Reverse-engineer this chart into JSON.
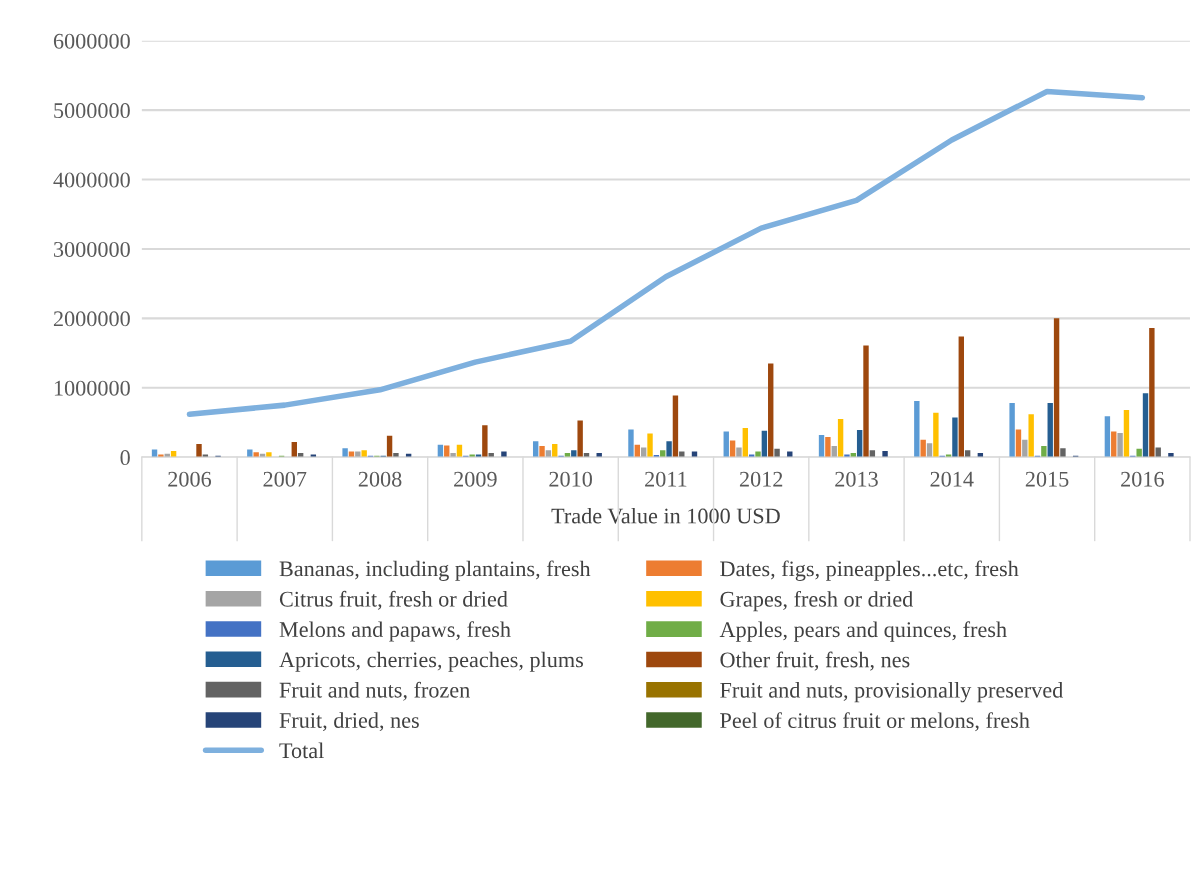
{
  "chart_data": {
    "type": "bar",
    "xlabel": "Trade Value in 1000 USD",
    "categories": [
      "2006",
      "2007",
      "2008",
      "2009",
      "2010",
      "2011",
      "2012",
      "2013",
      "2014",
      "2015",
      "2016"
    ],
    "ylim": [
      0,
      6000000
    ],
    "yticks": [
      0,
      1000000,
      2000000,
      3000000,
      4000000,
      5000000,
      6000000
    ],
    "grid": "y",
    "legend": "bottom",
    "series": [
      {
        "name": "Bananas, including plantains, fresh",
        "color": "#5b9bd5",
        "values": [
          110000,
          110000,
          130000,
          180000,
          230000,
          400000,
          370000,
          320000,
          810000,
          780000,
          590000
        ]
      },
      {
        "name": "Dates, figs, pineapples...etc, fresh",
        "color": "#ed7d31",
        "values": [
          40000,
          70000,
          80000,
          170000,
          160000,
          180000,
          240000,
          290000,
          250000,
          400000,
          370000
        ]
      },
      {
        "name": "Citrus fruit, fresh or dried",
        "color": "#a5a5a5",
        "values": [
          50000,
          50000,
          80000,
          60000,
          100000,
          140000,
          140000,
          160000,
          200000,
          250000,
          350000
        ]
      },
      {
        "name": "Grapes, fresh or dried",
        "color": "#ffc000",
        "values": [
          90000,
          70000,
          100000,
          180000,
          190000,
          340000,
          420000,
          550000,
          640000,
          620000,
          680000
        ]
      },
      {
        "name": "Melons and papaws, fresh",
        "color": "#4472c4",
        "values": [
          0,
          0,
          20000,
          20000,
          20000,
          30000,
          40000,
          40000,
          20000,
          20000,
          20000
        ]
      },
      {
        "name": "Apples, pears and quinces, fresh",
        "color": "#70ad47",
        "values": [
          0,
          20000,
          20000,
          40000,
          60000,
          100000,
          80000,
          60000,
          40000,
          160000,
          120000
        ]
      },
      {
        "name": "Apricots, cherries, peaches, plums",
        "color": "#255e91",
        "values": [
          0,
          0,
          20000,
          40000,
          100000,
          230000,
          380000,
          390000,
          570000,
          780000,
          920000
        ]
      },
      {
        "name": "Other fruit, fresh, nes",
        "color": "#9e480e",
        "values": [
          190000,
          220000,
          310000,
          460000,
          530000,
          890000,
          1350000,
          1610000,
          1740000,
          2000000,
          1860000
        ]
      },
      {
        "name": "Fruit and nuts, frozen",
        "color": "#636363",
        "values": [
          40000,
          60000,
          60000,
          60000,
          60000,
          80000,
          120000,
          100000,
          100000,
          130000,
          140000
        ]
      },
      {
        "name": "Fruit and nuts, provisionally preserved",
        "color": "#997300",
        "values": [
          0,
          0,
          0,
          0,
          0,
          0,
          0,
          0,
          0,
          0,
          0
        ]
      },
      {
        "name": "Fruit, dried, nes",
        "color": "#264478",
        "values": [
          20000,
          40000,
          50000,
          80000,
          60000,
          80000,
          80000,
          90000,
          60000,
          20000,
          60000
        ]
      },
      {
        "name": "Peel of citrus fruit or melons, fresh",
        "color": "#43682b",
        "values": [
          0,
          0,
          0,
          0,
          0,
          0,
          0,
          0,
          0,
          0,
          0
        ]
      },
      {
        "name": "Total",
        "type": "line",
        "color": "#7eb0de",
        "values": [
          620000,
          750000,
          970000,
          1370000,
          1670000,
          2600000,
          3300000,
          3700000,
          4570000,
          5270000,
          5180000
        ]
      }
    ]
  }
}
